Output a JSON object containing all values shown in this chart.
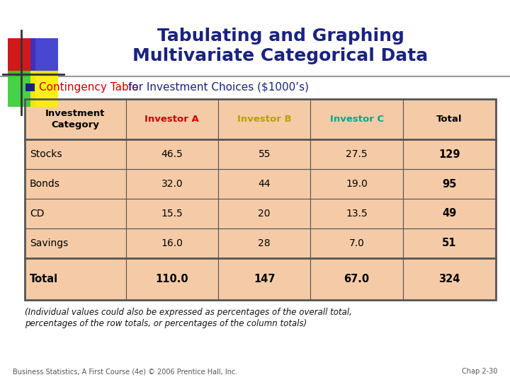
{
  "title_line1": "Tabulating and Graphing",
  "title_line2": "Multivariate Categorical Data",
  "title_color": "#1a237e",
  "subtitle_color": "#1a237e",
  "subtitle_highlight_color": "#cc0000",
  "bullet_color": "#1a237e",
  "table_bg": "#f5cba7",
  "table_border_color": "#555555",
  "col_headers": [
    "Investment\nCategory",
    "Investor A",
    "Investor B",
    "Investor C",
    "Total"
  ],
  "col_header_colors": [
    "#000000",
    "#cc0000",
    "#b8a000",
    "#00aa88",
    "#000000"
  ],
  "row_labels": [
    "Stocks",
    "Bonds",
    "CD",
    "Savings",
    "Total"
  ],
  "row_label_bold": [
    false,
    false,
    false,
    false,
    true
  ],
  "data": [
    [
      "46.5",
      "55",
      "27.5",
      "129"
    ],
    [
      "32.0",
      "44",
      "19.0",
      "95"
    ],
    [
      "15.5",
      "20",
      "13.5",
      "49"
    ],
    [
      "16.0",
      "28",
      "7.0",
      "51"
    ],
    [
      "110.0",
      "147",
      "67.0",
      "324"
    ]
  ],
  "footnote_line1": "(Individual values could also be expressed as percentages of the overall total,",
  "footnote_line2": "percentages of the row totals, or percentages of the column totals)",
  "bottom_left": "Business Statistics, A First Course (4e) © 2006 Prentice Hall, Inc.",
  "bottom_right": "Chap 2-30",
  "bg_color": "#ffffff",
  "dec_colors": [
    "#cc0000",
    "#3333cc",
    "#33cc33",
    "#ffee00"
  ],
  "line_color": "#999999"
}
